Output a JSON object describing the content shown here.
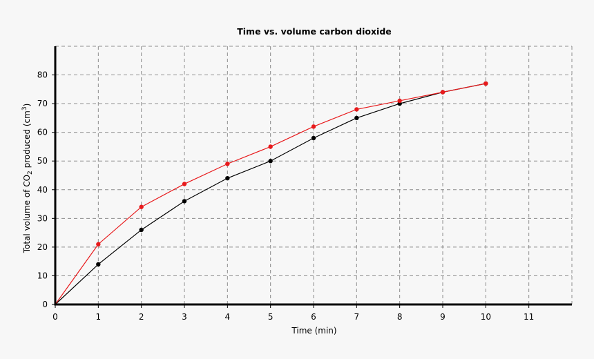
{
  "chart_data": {
    "type": "line",
    "title": "Time vs. volume carbon dioxide",
    "xlabel": "Time (min)",
    "ylabel": {
      "prefix": "Total volume of CO",
      "subscript": "2",
      "middle": " produced (cm",
      "superscript": "3",
      "suffix": ")"
    },
    "xlim": [
      0,
      12
    ],
    "ylim": [
      0,
      90
    ],
    "x_ticks": [
      0,
      1,
      2,
      3,
      4,
      5,
      6,
      7,
      8,
      9,
      10,
      11
    ],
    "y_ticks": [
      0,
      10,
      20,
      30,
      40,
      50,
      60,
      70,
      80
    ],
    "grid": true,
    "series": [
      {
        "color": "#000000",
        "x": [
          0,
          1,
          2,
          3,
          4,
          5,
          6,
          7,
          8,
          9,
          10
        ],
        "y": [
          0,
          14,
          26,
          36,
          44,
          50,
          58,
          65,
          70,
          74,
          77
        ]
      },
      {
        "color": "#e8191b",
        "x": [
          0,
          1,
          2,
          3,
          4,
          5,
          6,
          7,
          8,
          9,
          10
        ],
        "y": [
          0,
          21,
          34,
          42,
          49,
          55,
          62,
          68,
          71,
          74,
          77
        ]
      }
    ]
  }
}
